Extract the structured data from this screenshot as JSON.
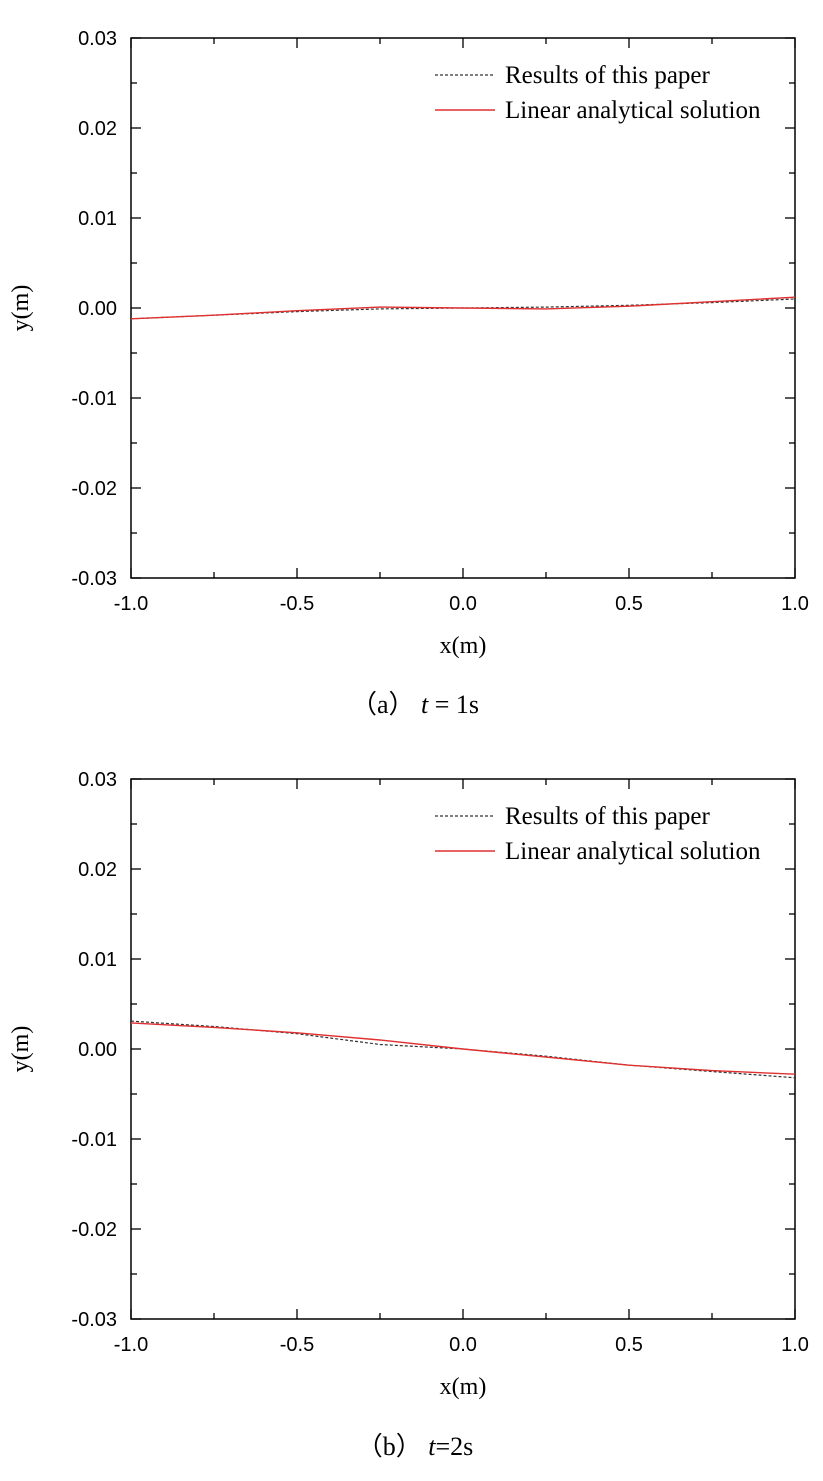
{
  "chart_data": [
    {
      "type": "line",
      "caption": {
        "prefix": "（a）",
        "var": "t",
        "rest": " = 1s"
      },
      "xlabel": "x(m)",
      "ylabel": "y(m)",
      "xlim": [
        -1.0,
        1.0
      ],
      "ylim": [
        -0.03,
        0.03
      ],
      "xticks": [
        "-1.0",
        "-0.5",
        "0.0",
        "0.5",
        "1.0"
      ],
      "yticks": [
        "0.03",
        "0.02",
        "0.01",
        "0.00",
        "-0.01",
        "-0.02",
        "-0.03"
      ],
      "grid": false,
      "legend_position": "top-right",
      "series": [
        {
          "name": "Results of this paper",
          "style": "dashed",
          "color": "#333333",
          "x": [
            -1.0,
            -0.75,
            -0.5,
            -0.25,
            0.0,
            0.25,
            0.5,
            0.75,
            1.0
          ],
          "y": [
            -0.0012,
            -0.0008,
            -0.0004,
            -0.0001,
            0.0,
            0.0001,
            0.0003,
            0.0006,
            0.001
          ]
        },
        {
          "name": "Linear analytical solution",
          "style": "solid",
          "color": "#e03030",
          "x": [
            -1.0,
            -0.75,
            -0.5,
            -0.25,
            0.0,
            0.25,
            0.5,
            0.75,
            1.0
          ],
          "y": [
            -0.0012,
            -0.0008,
            -0.0003,
            0.0001,
            0.0,
            -0.0001,
            0.0002,
            0.0007,
            0.0012
          ]
        }
      ]
    },
    {
      "type": "line",
      "caption": {
        "prefix": "（b）",
        "var": "t",
        "rest": "=2s"
      },
      "xlabel": "x(m)",
      "ylabel": "y(m)",
      "xlim": [
        -1.0,
        1.0
      ],
      "ylim": [
        -0.03,
        0.03
      ],
      "xticks": [
        "-1.0",
        "-0.5",
        "0.0",
        "0.5",
        "1.0"
      ],
      "yticks": [
        "0.03",
        "0.02",
        "0.01",
        "0.00",
        "-0.01",
        "-0.02",
        "-0.03"
      ],
      "grid": false,
      "legend_position": "top-right",
      "series": [
        {
          "name": "Results of this paper",
          "style": "dashed",
          "color": "#333333",
          "x": [
            -1.0,
            -0.75,
            -0.5,
            -0.25,
            0.0,
            0.25,
            0.5,
            0.75,
            1.0
          ],
          "y": [
            0.0031,
            0.0025,
            0.0017,
            0.0005,
            0.0,
            -0.0008,
            -0.0018,
            -0.0025,
            -0.0032
          ]
        },
        {
          "name": "Linear analytical solution",
          "style": "solid",
          "color": "#e03030",
          "x": [
            -1.0,
            -0.75,
            -0.5,
            -0.25,
            0.0,
            0.25,
            0.5,
            0.75,
            1.0
          ],
          "y": [
            0.0029,
            0.0024,
            0.0018,
            0.001,
            0.0,
            -0.0009,
            -0.0018,
            -0.0024,
            -0.0028
          ]
        }
      ]
    }
  ]
}
